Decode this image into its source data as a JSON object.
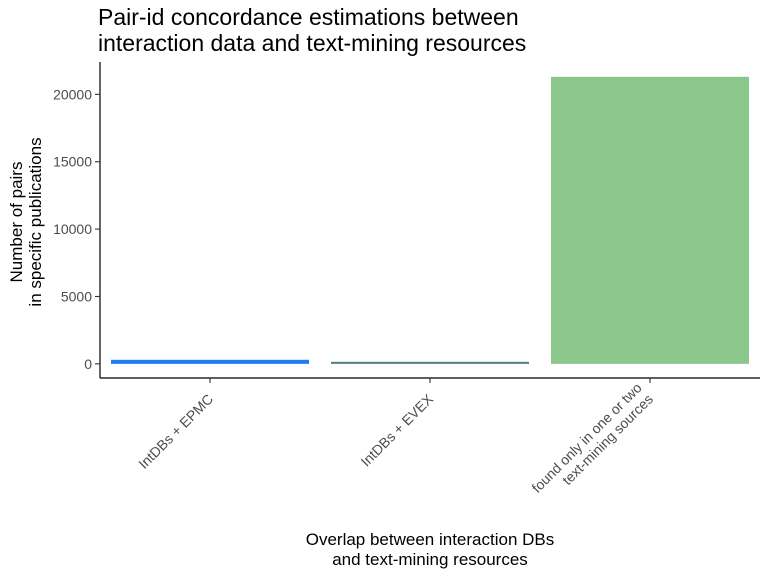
{
  "chart_data": {
    "type": "bar",
    "title_lines": [
      "Pair-id concordance estimations between",
      "interaction data and text-mining resources"
    ],
    "xlabel_lines": [
      "Overlap between interaction DBs",
      "and text-mining resources"
    ],
    "ylabel_lines": [
      "Number of pairs",
      "in specific publications"
    ],
    "categories": [
      {
        "lines": [
          "IntDBs + EPMC"
        ]
      },
      {
        "lines": [
          "IntDBs + EVEX"
        ]
      },
      {
        "lines": [
          "found only in one or two",
          "text-mining sources"
        ]
      }
    ],
    "values": [
      300,
      150,
      21300
    ],
    "colors": [
      "#1f7bf2",
      "#4a7f85",
      "#8bc68a"
    ],
    "ylim": [
      -1050,
      22400
    ],
    "yticks": [
      0,
      5000,
      10000,
      15000,
      20000
    ],
    "grid": false,
    "legend": "none"
  }
}
